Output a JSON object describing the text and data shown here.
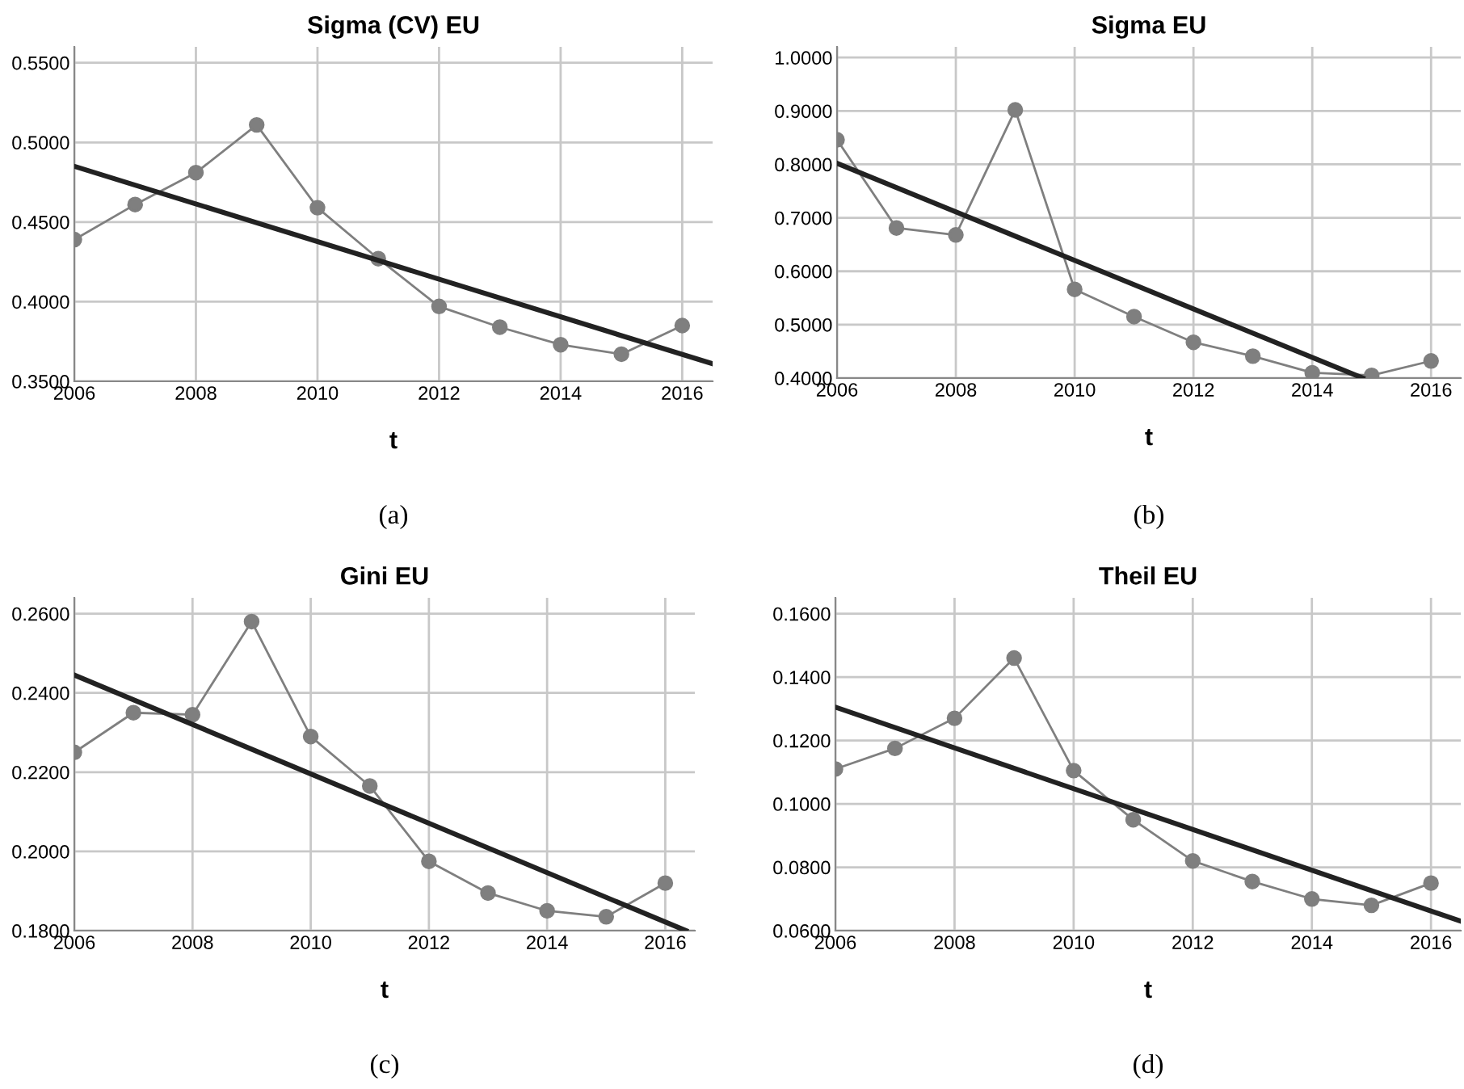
{
  "chart_data": [
    {
      "type": "line",
      "title": "Sigma (CV) EU",
      "xlabel": "t",
      "annotations": [
        "(a)"
      ],
      "grid": true,
      "xlim": [
        2006,
        2016.5
      ],
      "ylim": [
        0.35,
        0.56
      ],
      "xticks": [
        2006,
        2008,
        2010,
        2012,
        2014,
        2016
      ],
      "yticks": [
        {
          "value": 0.35,
          "label": "0.3500"
        },
        {
          "value": 0.4,
          "label": "0.4000"
        },
        {
          "value": 0.45,
          "label": "0.4500"
        },
        {
          "value": 0.5,
          "label": "0.5000"
        },
        {
          "value": 0.55,
          "label": "0.5500"
        }
      ],
      "series": [
        {
          "color": "#7f7f7f",
          "marker": "circle",
          "x": [
            2006,
            2007,
            2008,
            2009,
            2010,
            2011,
            2012,
            2013,
            2014,
            2015,
            2016
          ],
          "values": [
            0.439,
            0.461,
            0.481,
            0.511,
            0.459,
            0.427,
            0.397,
            0.384,
            0.373,
            0.367,
            0.385
          ]
        },
        {
          "color": "#222222",
          "marker": "none",
          "x": [
            2006,
            2016.5
          ],
          "values": [
            0.485,
            0.361
          ]
        }
      ]
    },
    {
      "type": "line",
      "title": "Sigma EU",
      "xlabel": "t",
      "annotations": [
        "(b)"
      ],
      "grid": true,
      "xlim": [
        2006,
        2016.5
      ],
      "ylim": [
        0.4,
        1.02
      ],
      "xticks": [
        2006,
        2008,
        2010,
        2012,
        2014,
        2016
      ],
      "yticks": [
        {
          "value": 0.4,
          "label": "0.4000"
        },
        {
          "value": 0.5,
          "label": "0.5000"
        },
        {
          "value": 0.6,
          "label": "0.6000"
        },
        {
          "value": 0.7,
          "label": "0.7000"
        },
        {
          "value": 0.8,
          "label": "0.8000"
        },
        {
          "value": 0.9,
          "label": "0.9000"
        },
        {
          "value": 1.0,
          "label": "1.0000"
        }
      ],
      "series": [
        {
          "color": "#7f7f7f",
          "marker": "circle",
          "x": [
            2006,
            2007,
            2008,
            2009,
            2010,
            2011,
            2012,
            2013,
            2014,
            2015,
            2016
          ],
          "values": [
            0.846,
            0.681,
            0.668,
            0.902,
            0.566,
            0.515,
            0.467,
            0.441,
            0.41,
            0.405,
            0.432
          ]
        },
        {
          "color": "#222222",
          "marker": "none",
          "x": [
            2006,
            2014.85
          ],
          "values": [
            0.802,
            0.4
          ]
        }
      ]
    },
    {
      "type": "line",
      "title": "Gini EU",
      "xlabel": "t",
      "annotations": [
        "(c)"
      ],
      "grid": true,
      "xlim": [
        2006,
        2016.5
      ],
      "ylim": [
        0.18,
        0.264
      ],
      "xticks": [
        2006,
        2008,
        2010,
        2012,
        2014,
        2016
      ],
      "yticks": [
        {
          "value": 0.18,
          "label": "0.1800"
        },
        {
          "value": 0.2,
          "label": "0.2000"
        },
        {
          "value": 0.22,
          "label": "0.2200"
        },
        {
          "value": 0.24,
          "label": "0.2400"
        },
        {
          "value": 0.26,
          "label": "0.2600"
        }
      ],
      "series": [
        {
          "color": "#7f7f7f",
          "marker": "circle",
          "x": [
            2006,
            2007,
            2008,
            2009,
            2010,
            2011,
            2012,
            2013,
            2014,
            2015,
            2016
          ],
          "values": [
            0.225,
            0.235,
            0.2345,
            0.258,
            0.229,
            0.2165,
            0.1975,
            0.1895,
            0.185,
            0.1835,
            0.192
          ]
        },
        {
          "color": "#222222",
          "marker": "none",
          "x": [
            2006,
            2016.35
          ],
          "values": [
            0.2445,
            0.18
          ]
        }
      ]
    },
    {
      "type": "line",
      "title": "Theil EU",
      "xlabel": "t",
      "annotations": [
        "(d)"
      ],
      "grid": true,
      "xlim": [
        2006,
        2016.5
      ],
      "ylim": [
        0.06,
        0.165
      ],
      "xticks": [
        2006,
        2008,
        2010,
        2012,
        2014,
        2016
      ],
      "yticks": [
        {
          "value": 0.06,
          "label": "0.0600"
        },
        {
          "value": 0.08,
          "label": "0.0800"
        },
        {
          "value": 0.1,
          "label": "0.1000"
        },
        {
          "value": 0.12,
          "label": "0.1200"
        },
        {
          "value": 0.14,
          "label": "0.1400"
        },
        {
          "value": 0.16,
          "label": "0.1600"
        }
      ],
      "series": [
        {
          "color": "#7f7f7f",
          "marker": "circle",
          "x": [
            2006,
            2007,
            2008,
            2009,
            2010,
            2011,
            2012,
            2013,
            2014,
            2015,
            2016
          ],
          "values": [
            0.111,
            0.1175,
            0.127,
            0.146,
            0.1105,
            0.095,
            0.082,
            0.0755,
            0.07,
            0.068,
            0.075
          ]
        },
        {
          "color": "#222222",
          "marker": "none",
          "x": [
            2006,
            2016.5
          ],
          "values": [
            0.1305,
            0.063
          ]
        }
      ]
    }
  ]
}
